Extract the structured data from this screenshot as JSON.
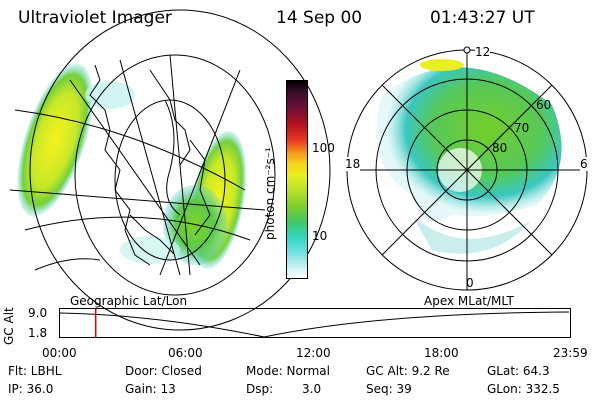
{
  "header": {
    "instrument": "Ultraviolet Imager",
    "date": "14 Sep 00",
    "time": "01:43:27 UT"
  },
  "colorbar": {
    "unit_label": "photon cm⁻²s⁻¹",
    "ticks": [
      "100",
      "10"
    ]
  },
  "polar_plot": {
    "lat_labels": [
      "60",
      "70",
      "80"
    ],
    "mlt_labels": [
      "12",
      "18",
      "6",
      "0"
    ]
  },
  "orbit_panel": {
    "ylabel": "GC Alt",
    "y_ticks": [
      "9.0",
      "1.8"
    ],
    "left_projection": "Geographic Lat/Lon",
    "right_projection": "Apex  MLat/MLT",
    "time_ticks": [
      "00:00",
      "06:00",
      "12:00",
      "18:00",
      "23:59"
    ],
    "current_time_fraction": 0.07
  },
  "info": {
    "flt": "Flt: LBHL",
    "ip": "IP: 36.0",
    "door": "Door: Closed",
    "gain": "Gain: 13",
    "mode": "Mode: Normal",
    "dsp_label": "Dsp:",
    "dsp_value": "3.0",
    "gcalt": "GC Alt: 9.2 Re",
    "seq": "Seq: 39",
    "glat": "GLat:  64.3",
    "glon": "GLon: 332.5"
  },
  "colors": {
    "marker": "#e00000",
    "aurora_yellow": "#f2ee1e",
    "aurora_green": "#7ed321",
    "aurora_cyan": "#38d6c8"
  }
}
